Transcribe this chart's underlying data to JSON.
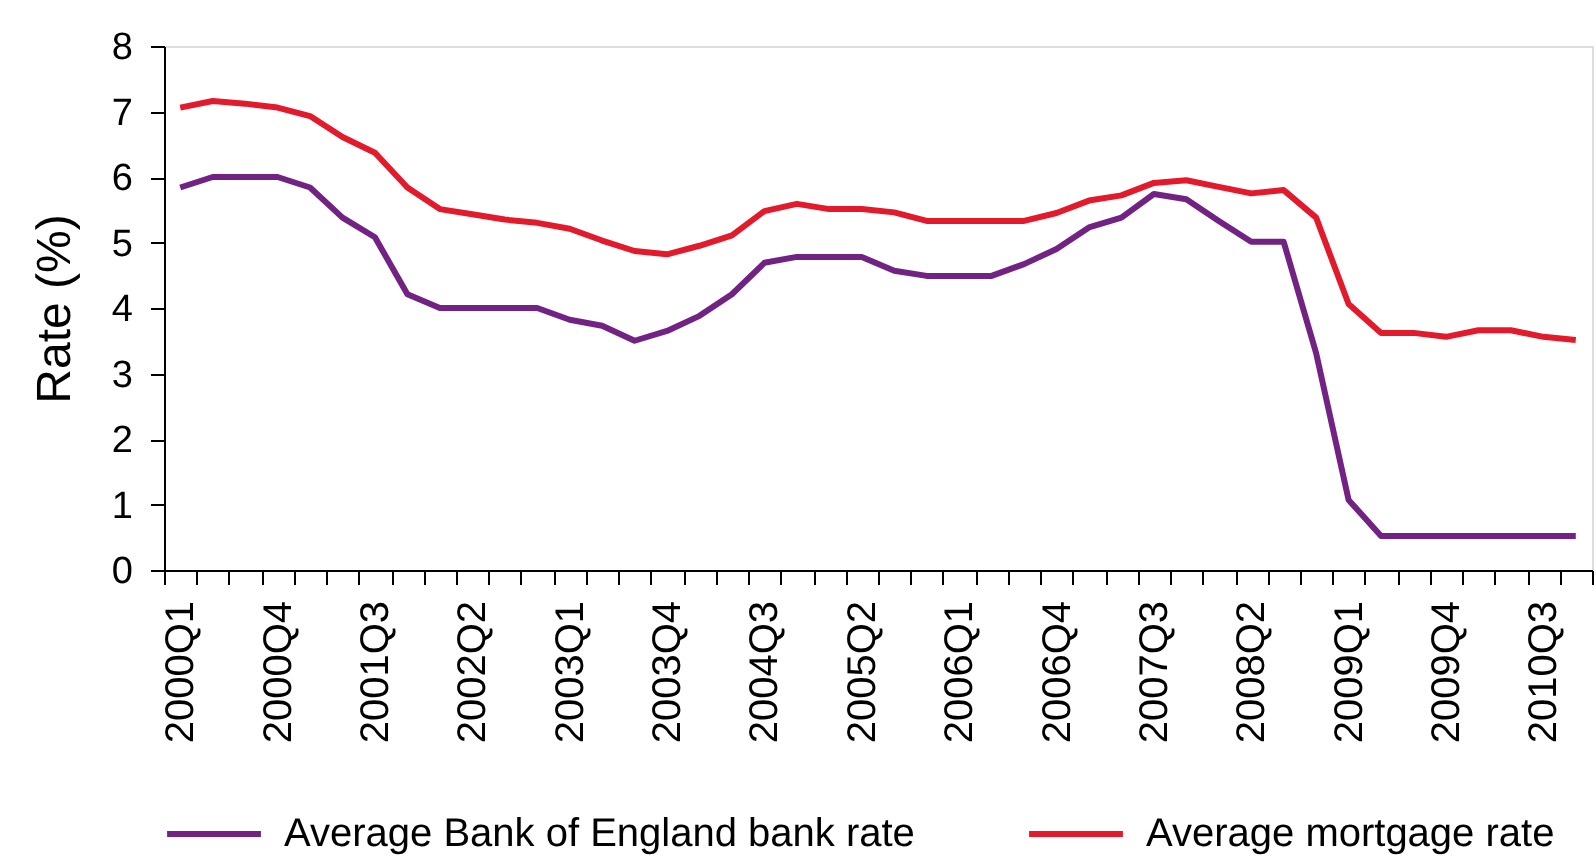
{
  "chart_data": {
    "type": "line",
    "ylabel": "Rate (%)",
    "categories": [
      "2000Q1",
      null,
      null,
      "2000Q4",
      null,
      null,
      "2001Q3",
      null,
      null,
      "2002Q2",
      null,
      null,
      "2003Q1",
      null,
      null,
      "2003Q4",
      null,
      null,
      "2004Q3",
      null,
      null,
      "2005Q2",
      null,
      null,
      "2006Q1",
      null,
      null,
      "2006Q4",
      null,
      null,
      "2007Q3",
      null,
      null,
      "2008Q2",
      null,
      null,
      "2009Q1",
      null,
      null,
      "2009Q4",
      null,
      null,
      "2010Q3",
      null
    ],
    "series": [
      {
        "name": "Average Bank of England bank rate",
        "color": "#722282",
        "values": [
          5.84,
          6.0,
          6.0,
          6.0,
          5.84,
          5.38,
          5.08,
          4.21,
          4.0,
          4.0,
          4.0,
          4.0,
          3.82,
          3.73,
          3.5,
          3.65,
          3.88,
          4.21,
          4.69,
          4.78,
          4.78,
          4.78,
          4.57,
          4.49,
          4.49,
          4.49,
          4.67,
          4.9,
          5.23,
          5.38,
          5.74,
          5.66,
          5.33,
          5.01,
          5.01,
          3.31,
          1.07,
          0.52,
          0.52,
          0.52,
          0.52,
          0.52,
          0.52,
          0.52
        ]
      },
      {
        "name": "Average mortgage rate",
        "color": "#e21a2b",
        "values": [
          7.06,
          7.16,
          7.12,
          7.06,
          6.93,
          6.61,
          6.37,
          5.84,
          5.51,
          5.43,
          5.35,
          5.3,
          5.21,
          5.03,
          4.87,
          4.82,
          4.95,
          5.11,
          5.48,
          5.59,
          5.51,
          5.51,
          5.46,
          5.33,
          5.33,
          5.33,
          5.33,
          5.45,
          5.64,
          5.72,
          5.91,
          5.95,
          5.85,
          5.75,
          5.8,
          5.38,
          4.06,
          3.62,
          3.62,
          3.56,
          3.66,
          3.66,
          3.56,
          3.51
        ]
      }
    ],
    "ylim": [
      0,
      8
    ],
    "yticks": [
      0,
      1,
      2,
      3,
      4,
      5,
      6,
      7,
      8
    ],
    "grid": false,
    "legend": "bottom",
    "line_style": "solid"
  }
}
